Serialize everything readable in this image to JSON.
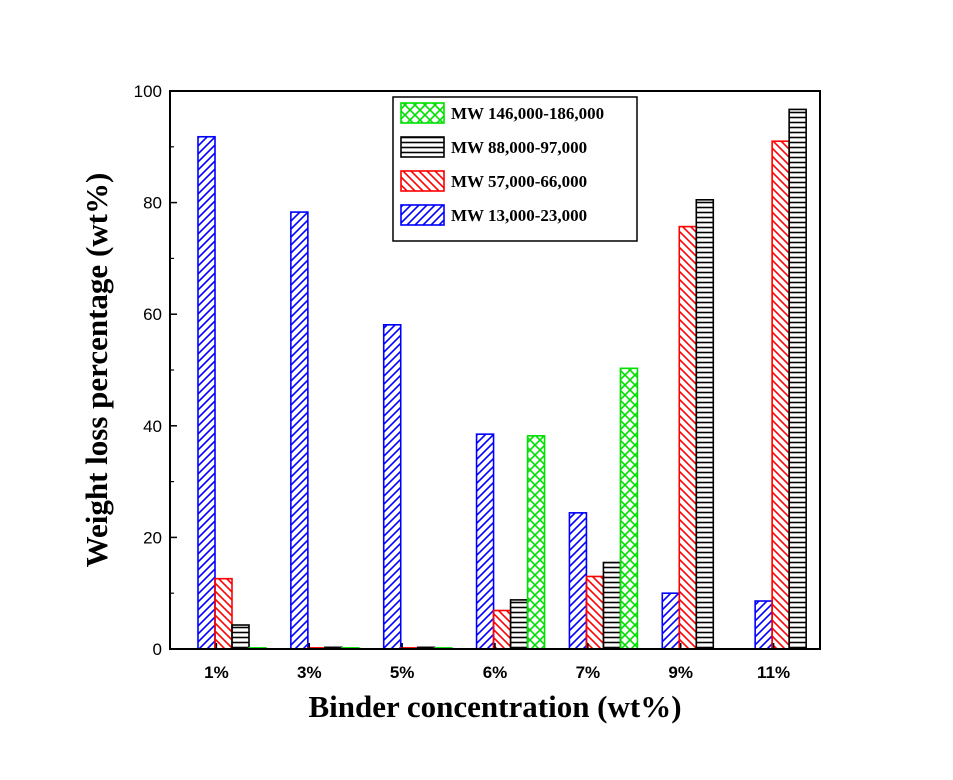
{
  "chart_data": {
    "type": "bar",
    "title": "",
    "xlabel": "Binder concentration (wt%)",
    "ylabel": "Weight loss percentage (wt%)",
    "categories": [
      "1%",
      "3%",
      "5%",
      "6%",
      "7%",
      "9%",
      "11%"
    ],
    "ylim": [
      0,
      100
    ],
    "yticks": [
      0,
      20,
      40,
      60,
      80,
      100
    ],
    "grid": false,
    "legend_position": "top-center",
    "series": [
      {
        "name": "MW 13,000-23,000",
        "color": "#0000ff",
        "pattern": "diagonal-up",
        "values": [
          91.8,
          78.3,
          58.1,
          38.5,
          24.4,
          10.0,
          8.6
        ]
      },
      {
        "name": "MW 57,000-66,000",
        "color": "#ff0000",
        "pattern": "diagonal-down",
        "values": [
          12.6,
          0.2,
          0.2,
          6.9,
          13.0,
          75.7,
          91.0
        ]
      },
      {
        "name": "MW 88,000-97,000",
        "color": "#000000",
        "pattern": "horizontal-lines",
        "values": [
          4.3,
          0.3,
          0.3,
          8.8,
          15.5,
          80.5,
          96.7
        ]
      },
      {
        "name": "MW 146,000-186,000",
        "color": "#00e000",
        "pattern": "crosshatch",
        "values": [
          0.2,
          0.2,
          0.2,
          38.2,
          50.3,
          null,
          null
        ]
      }
    ],
    "legend_order": [
      3,
      2,
      1,
      0
    ]
  }
}
